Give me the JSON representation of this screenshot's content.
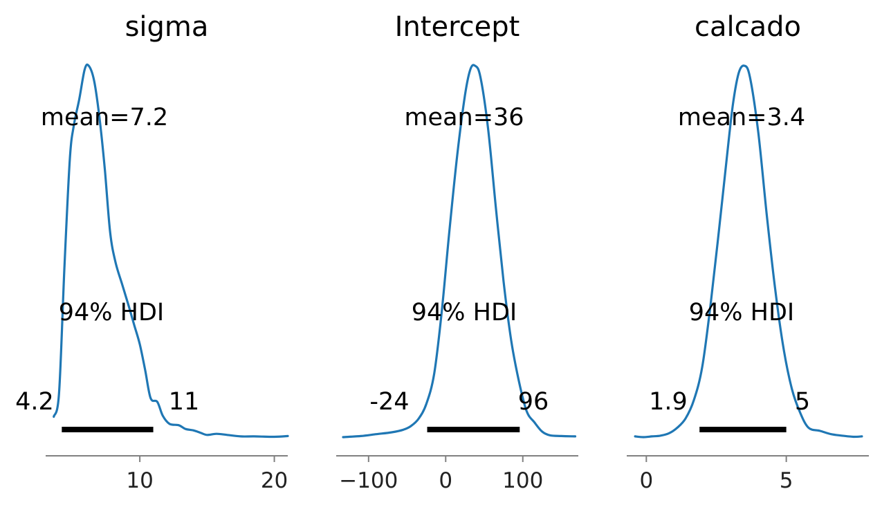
{
  "chart_data": [
    {
      "type": "line",
      "title": "sigma",
      "xlim": [
        3.0,
        21.0
      ],
      "xticks": [
        10,
        20
      ],
      "xtick_labels": [
        "10",
        "20"
      ],
      "mean_label": "mean=7.2",
      "hdi_label": "94% HDI",
      "hdi": [
        4.2,
        11
      ],
      "hdi_low_label": "4.2",
      "hdi_high_label": "11",
      "density": {
        "x": [
          3.6,
          4.0,
          4.4,
          4.8,
          5.1,
          5.5,
          5.9,
          6.2,
          6.6,
          7.0,
          7.4,
          7.8,
          8.2,
          8.7,
          9.2,
          9.6,
          10.0,
          10.4,
          10.8,
          11.3,
          11.7,
          12.2,
          12.9,
          13.4,
          14.0,
          14.5,
          15.0,
          15.7,
          16.5,
          17.5,
          18.5,
          20.0,
          21.0
        ],
        "y": [
          0.055,
          0.12,
          0.46,
          0.75,
          0.84,
          0.91,
          0.99,
          1.0,
          0.96,
          0.86,
          0.72,
          0.55,
          0.47,
          0.41,
          0.35,
          0.3,
          0.25,
          0.18,
          0.105,
          0.095,
          0.058,
          0.036,
          0.032,
          0.022,
          0.018,
          0.012,
          0.006,
          0.009,
          0.006,
          0.002,
          0.002,
          0.001,
          0.003
        ]
      }
    },
    {
      "type": "line",
      "title": "Intercept",
      "xlim": [
        -142,
        172
      ],
      "xticks": [
        -100,
        0,
        100
      ],
      "xtick_labels": [
        "−100",
        "0",
        "100"
      ],
      "mean_label": "mean=36",
      "hdi_label": "94% HDI",
      "hdi": [
        -24,
        96
      ],
      "hdi_low_label": "-24",
      "hdi_high_label": "96",
      "density": {
        "x": [
          -133,
          -110,
          -90,
          -70,
          -55,
          -45,
          -35,
          -25,
          -15,
          -5,
          5,
          15,
          25,
          32,
          38,
          45,
          55,
          65,
          75,
          85,
          95,
          105,
          115,
          125,
          135,
          150,
          168
        ],
        "y": [
          0.0,
          0.003,
          0.008,
          0.013,
          0.02,
          0.03,
          0.05,
          0.09,
          0.17,
          0.34,
          0.56,
          0.76,
          0.92,
          0.99,
          1.0,
          0.97,
          0.83,
          0.62,
          0.42,
          0.26,
          0.15,
          0.07,
          0.04,
          0.015,
          0.005,
          0.003,
          0.002
        ]
      }
    },
    {
      "type": "line",
      "title": "calcado",
      "xlim": [
        -0.7,
        7.95
      ],
      "xticks": [
        0,
        5
      ],
      "xtick_labels": [
        "0",
        "5"
      ],
      "mean_label": "mean=3.4",
      "hdi_label": "94% HDI",
      "hdi": [
        1.9,
        5
      ],
      "hdi_low_label": "1.9",
      "hdi_high_label": "5",
      "density": {
        "x": [
          -0.4,
          -0.1,
          0.2,
          0.5,
          0.8,
          1.1,
          1.4,
          1.7,
          2.0,
          2.3,
          2.6,
          2.9,
          3.1,
          3.3,
          3.5,
          3.7,
          4.0,
          4.3,
          4.6,
          4.9,
          5.2,
          5.5,
          5.8,
          6.2,
          6.6,
          7.0,
          7.4,
          7.7
        ],
        "y": [
          0.002,
          0.0,
          0.002,
          0.004,
          0.01,
          0.025,
          0.05,
          0.1,
          0.19,
          0.36,
          0.56,
          0.77,
          0.9,
          0.98,
          1.0,
          0.97,
          0.82,
          0.6,
          0.4,
          0.24,
          0.13,
          0.065,
          0.025,
          0.017,
          0.008,
          0.004,
          0.001,
          0.002
        ]
      }
    }
  ]
}
